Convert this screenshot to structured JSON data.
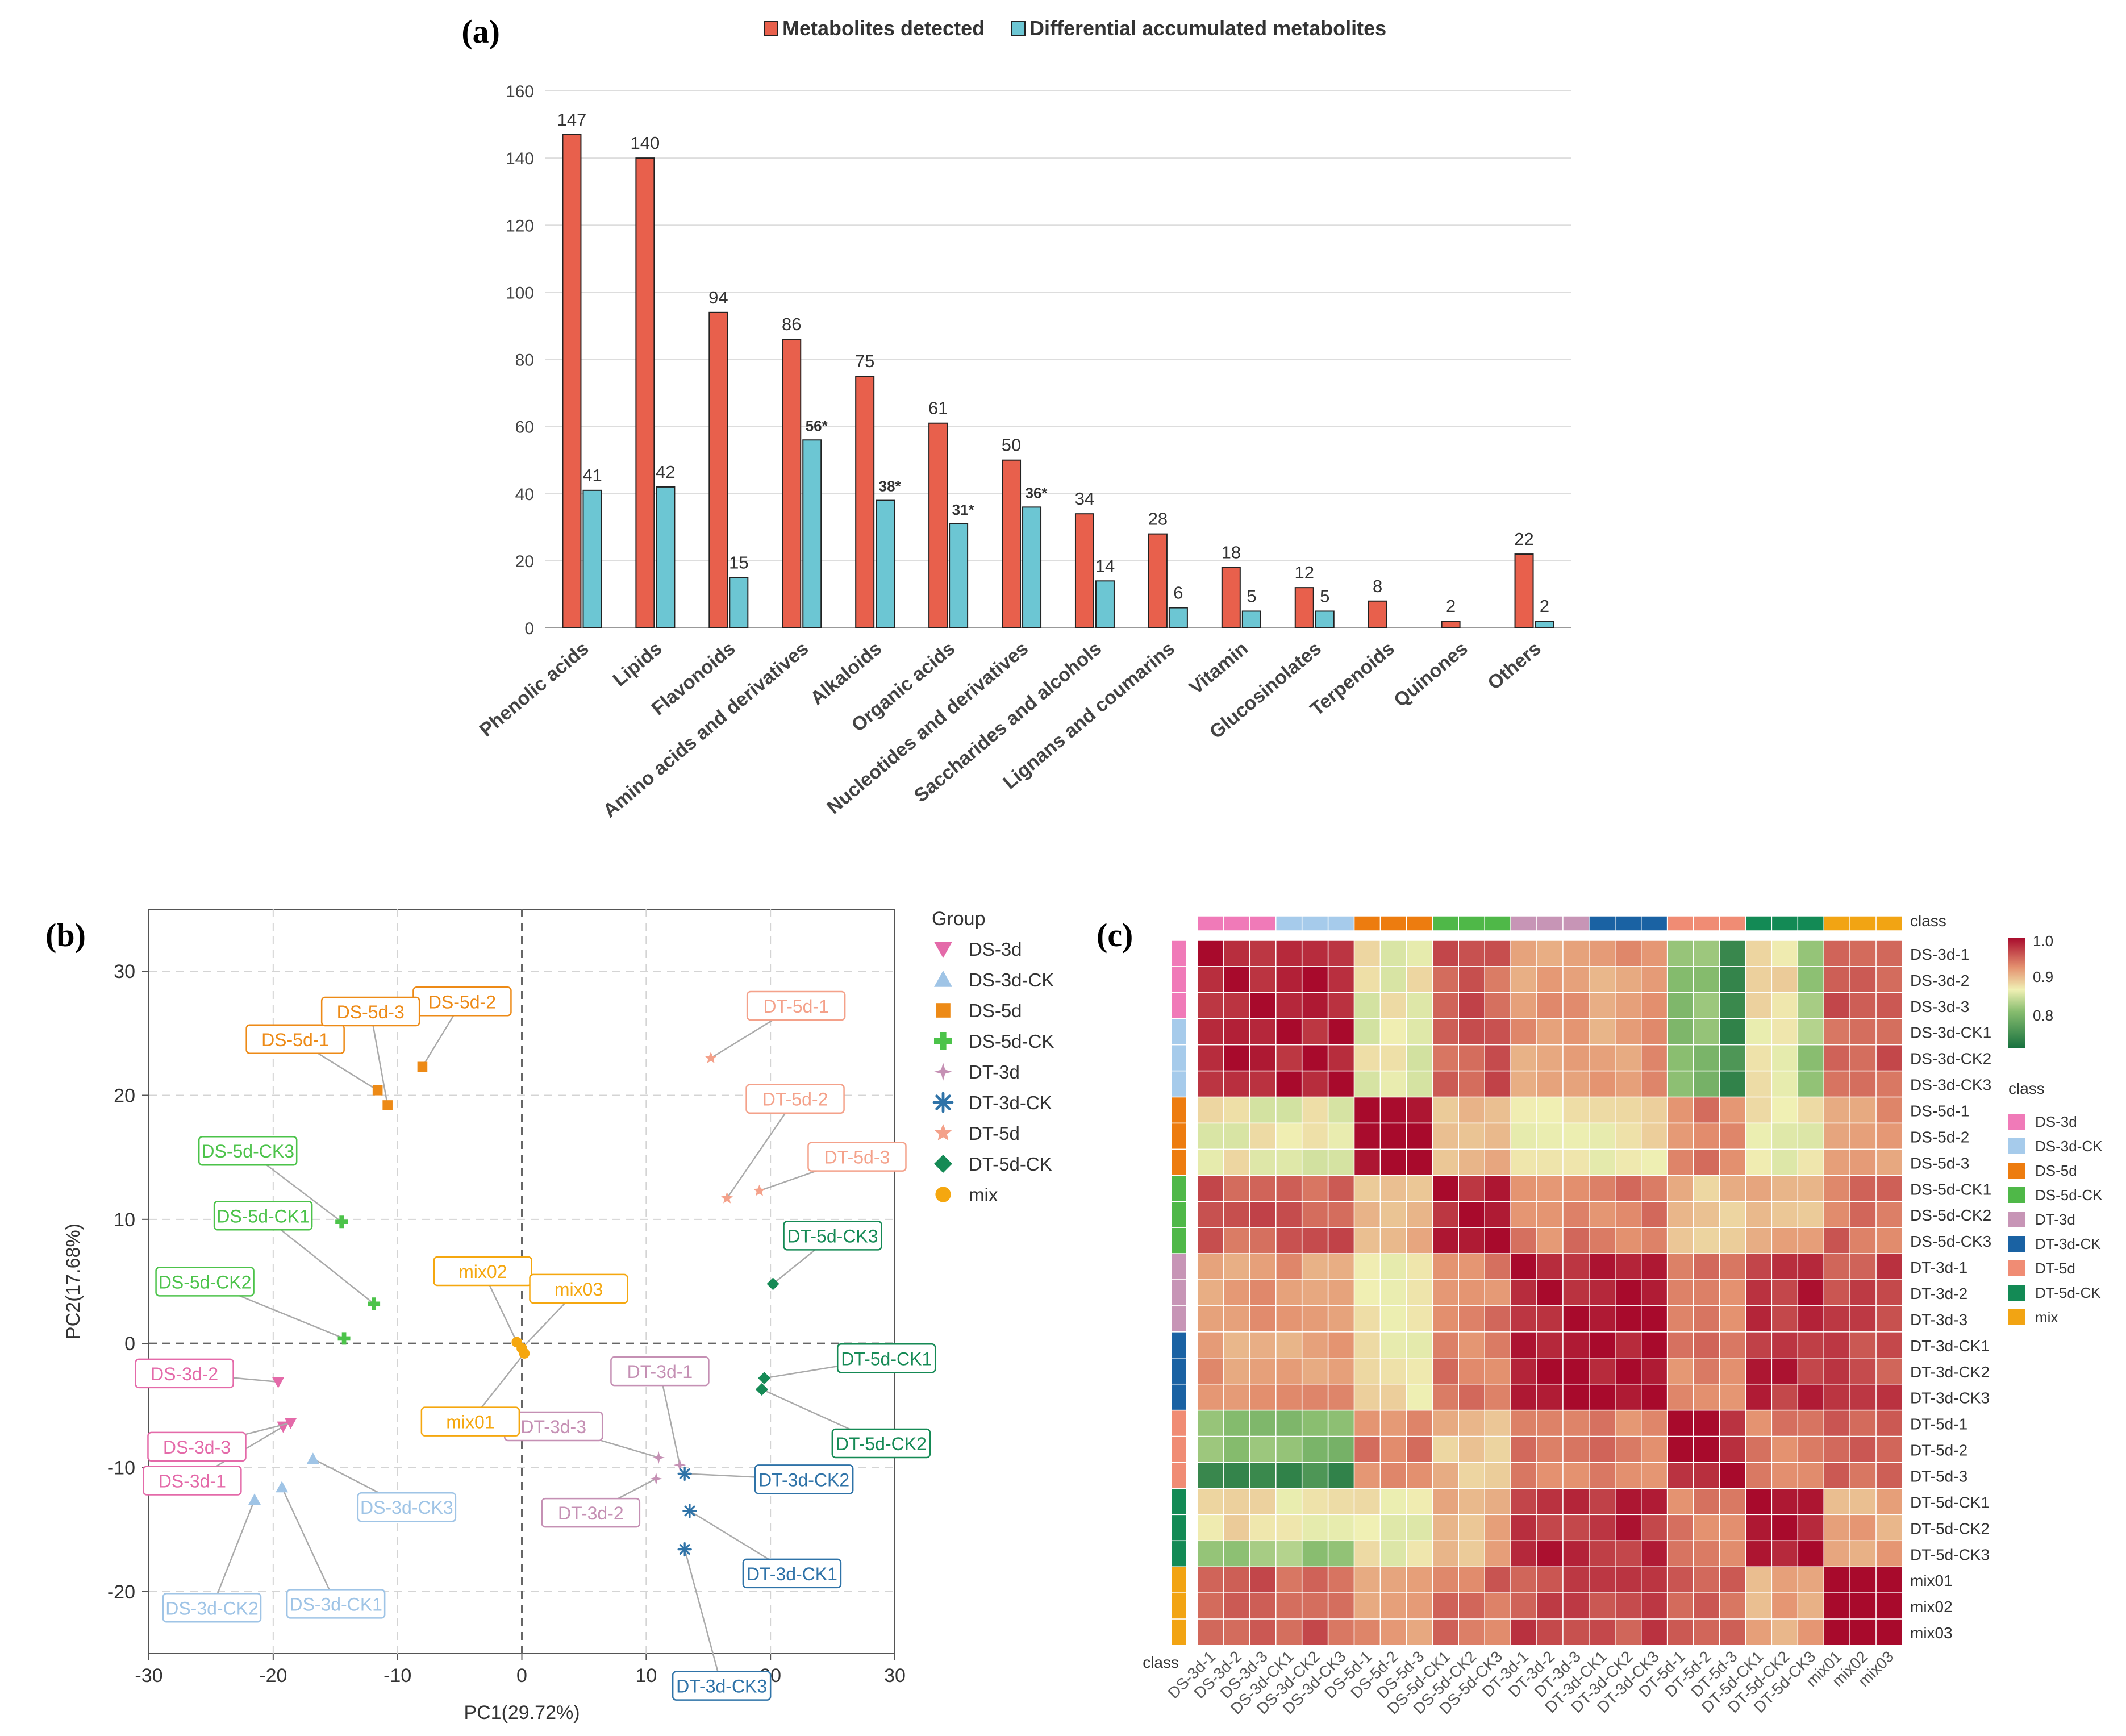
{
  "chart_data": [
    {
      "panel": "(a)",
      "type": "bar",
      "categories": [
        "Phenolic acids",
        "Lipids",
        "Flavonoids",
        "Amino acids and derivatives",
        "Alkaloids",
        "Organic acids",
        "Nucleotides and derivatives",
        "Saccharides and alcohols",
        "Lignans and coumarins",
        "Vitamin",
        "Glucosinolates",
        "Terpenoids",
        "Quinones",
        "Others"
      ],
      "series": [
        {
          "name": "Metabolites detected",
          "color": "#e8604c",
          "values": [
            147,
            140,
            94,
            86,
            75,
            61,
            50,
            34,
            28,
            18,
            12,
            8,
            2,
            22
          ],
          "labels": [
            "147",
            "140",
            "94",
            "86",
            "75",
            "61",
            "50",
            "34",
            "28",
            "18",
            "12",
            "8",
            "2",
            "22"
          ]
        },
        {
          "name": "Differential accumulated metabolites",
          "color": "#6cc6d3",
          "values": [
            41,
            42,
            15,
            56,
            38,
            31,
            36,
            14,
            6,
            5,
            5,
            0,
            0,
            2
          ],
          "labels": [
            "41",
            "42",
            "15",
            "56*",
            "38*",
            "31*",
            "36*",
            "14",
            "6",
            "5",
            "5",
            "",
            "",
            "2"
          ]
        }
      ],
      "ylim": [
        0,
        160
      ],
      "yticks": [
        0,
        20,
        40,
        60,
        80,
        100,
        120,
        140,
        160
      ],
      "xlabel": "",
      "ylabel": ""
    },
    {
      "panel": "(b)",
      "type": "scatter",
      "xlabel": "PC1(29.72%)",
      "ylabel": "PC2(17.68%)",
      "xlim": [
        -30,
        30
      ],
      "ylim": [
        -25,
        35
      ],
      "xticks": [
        -30,
        -20,
        -10,
        0,
        10,
        20,
        30
      ],
      "yticks": [
        -20,
        -10,
        0,
        10,
        20,
        30
      ],
      "legend_title": "Group",
      "groups": [
        {
          "name": "DS-3d",
          "color": "#e46aa9",
          "marker": "triangle-down",
          "points": [
            {
              "label": "DS-3d-1",
              "x": -19.2,
              "y": -6.7
            },
            {
              "label": "DS-3d-2",
              "x": -19.6,
              "y": -3.1
            },
            {
              "label": "DS-3d-3",
              "x": -18.6,
              "y": -6.4
            }
          ]
        },
        {
          "name": "DS-3d-CK",
          "color": "#9fc4e6",
          "marker": "triangle-up",
          "points": [
            {
              "label": "DS-3d-CK1",
              "x": -19.3,
              "y": -11.6
            },
            {
              "label": "DS-3d-CK2",
              "x": -21.5,
              "y": -12.6
            },
            {
              "label": "DS-3d-CK3",
              "x": -16.8,
              "y": -9.3
            }
          ]
        },
        {
          "name": "DS-5d",
          "color": "#ed8a16",
          "marker": "square",
          "points": [
            {
              "label": "DS-5d-1",
              "x": -11.6,
              "y": 20.4
            },
            {
              "label": "DS-5d-2",
              "x": -8.0,
              "y": 22.3
            },
            {
              "label": "DS-5d-3",
              "x": -10.8,
              "y": 19.2
            }
          ]
        },
        {
          "name": "DS-5d-CK",
          "color": "#4cc34a",
          "marker": "plus",
          "points": [
            {
              "label": "DS-5d-CK1",
              "x": -11.9,
              "y": 3.2
            },
            {
              "label": "DS-5d-CK2",
              "x": -14.3,
              "y": 0.4
            },
            {
              "label": "DS-5d-CK3",
              "x": -14.5,
              "y": 9.8
            }
          ]
        },
        {
          "name": "DT-3d",
          "color": "#c590b4",
          "marker": "star4",
          "points": [
            {
              "label": "DT-3d-1",
              "x": 12.7,
              "y": -9.8
            },
            {
              "label": "DT-3d-2",
              "x": 10.8,
              "y": -10.9
            },
            {
              "label": "DT-3d-3",
              "x": 11.0,
              "y": -9.2
            }
          ]
        },
        {
          "name": "DT-3d-CK",
          "color": "#2f73a8",
          "marker": "asterisk",
          "points": [
            {
              "label": "DT-3d-CK1",
              "x": 13.5,
              "y": -13.5
            },
            {
              "label": "DT-3d-CK2",
              "x": 13.1,
              "y": -10.5
            },
            {
              "label": "DT-3d-CK3",
              "x": 13.1,
              "y": -16.6
            }
          ]
        },
        {
          "name": "DT-5d",
          "color": "#f4a18a",
          "marker": "star",
          "points": [
            {
              "label": "DT-5d-1",
              "x": 15.2,
              "y": 23.0
            },
            {
              "label": "DT-5d-2",
              "x": 16.5,
              "y": 11.7
            },
            {
              "label": "DT-5d-3",
              "x": 19.1,
              "y": 12.3
            }
          ]
        },
        {
          "name": "DT-5d-CK",
          "color": "#158a55",
          "marker": "diamond",
          "points": [
            {
              "label": "DT-5d-CK1",
              "x": 19.5,
              "y": -2.8
            },
            {
              "label": "DT-5d-CK2",
              "x": 19.3,
              "y": -3.7
            },
            {
              "label": "DT-5d-CK3",
              "x": 20.2,
              "y": 4.8
            }
          ]
        },
        {
          "name": "mix",
          "color": "#f5a70f",
          "marker": "circle",
          "points": [
            {
              "label": "mix01",
              "x": 0.2,
              "y": -0.8
            },
            {
              "label": "mix02",
              "x": -0.4,
              "y": 0.1
            },
            {
              "label": "mix03",
              "x": 0.0,
              "y": -0.4
            }
          ]
        }
      ]
    },
    {
      "panel": "(c)",
      "type": "heatmap",
      "samples": [
        "DS-3d-1",
        "DS-3d-2",
        "DS-3d-3",
        "DS-3d-CK1",
        "DS-3d-CK2",
        "DS-3d-CK3",
        "DS-5d-1",
        "DS-5d-2",
        "DS-5d-3",
        "DS-5d-CK1",
        "DS-5d-CK2",
        "DS-5d-CK3",
        "DT-3d-1",
        "DT-3d-2",
        "DT-3d-3",
        "DT-3d-CK1",
        "DT-3d-CK2",
        "DT-3d-CK3",
        "DT-5d-1",
        "DT-5d-2",
        "DT-5d-3",
        "DT-5d-CK1",
        "DT-5d-CK2",
        "DT-5d-CK3",
        "mix01",
        "mix02",
        "mix03"
      ],
      "sample_class": [
        "DS-3d",
        "DS-3d",
        "DS-3d",
        "DS-3d-CK",
        "DS-3d-CK",
        "DS-3d-CK",
        "DS-5d",
        "DS-5d",
        "DS-5d",
        "DS-5d-CK",
        "DS-5d-CK",
        "DS-5d-CK",
        "DT-3d",
        "DT-3d",
        "DT-3d",
        "DT-3d-CK",
        "DT-3d-CK",
        "DT-3d-CK",
        "DT-5d",
        "DT-5d",
        "DT-5d",
        "DT-5d-CK",
        "DT-5d-CK",
        "DT-5d-CK",
        "mix",
        "mix",
        "mix"
      ],
      "class_title": "class",
      "classes": [
        {
          "name": "DS-3d",
          "color": "#f07ab8"
        },
        {
          "name": "DS-3d-CK",
          "color": "#a6cbeb"
        },
        {
          "name": "DS-5d",
          "color": "#ed7c0f"
        },
        {
          "name": "DS-5d-CK",
          "color": "#4fb848"
        },
        {
          "name": "DT-3d",
          "color": "#c795b6"
        },
        {
          "name": "DT-3d-CK",
          "color": "#1a62a3"
        },
        {
          "name": "DT-5d",
          "color": "#f08c74"
        },
        {
          "name": "DT-5d-CK",
          "color": "#138a55"
        },
        {
          "name": "mix",
          "color": "#f2a413"
        }
      ],
      "color_scale": {
        "ticks": [
          "1.0",
          "0.9",
          "0.8"
        ],
        "min": 0.7,
        "max": 1.0
      },
      "group_blocks": [
        {
          "name": "DS-3d",
          "samples": [
            0,
            1,
            2,
            3,
            4,
            5
          ]
        },
        {
          "name": "DS-5d",
          "samples": [
            6,
            7,
            8
          ]
        },
        {
          "name": "DS-5d-CK",
          "samples": [
            9,
            10,
            11
          ]
        },
        {
          "name": "DT-3d",
          "samples": [
            12,
            13,
            14,
            15,
            16,
            17
          ]
        },
        {
          "name": "DT-5d",
          "samples": [
            18,
            19,
            20
          ]
        },
        {
          "name": "DT-5d-CK",
          "samples": [
            21,
            22,
            23
          ]
        },
        {
          "name": "mix",
          "samples": [
            24,
            25,
            26
          ]
        }
      ],
      "group_correlation": [
        [
          0.99,
          0.86,
          0.95,
          0.91,
          0.8,
          0.87,
          0.95
        ],
        [
          0.86,
          0.99,
          0.89,
          0.87,
          0.93,
          0.86,
          0.92
        ],
        [
          0.95,
          0.89,
          0.99,
          0.93,
          0.89,
          0.9,
          0.94
        ],
        [
          0.91,
          0.87,
          0.93,
          0.99,
          0.93,
          0.98,
          0.96
        ],
        [
          0.8,
          0.93,
          0.89,
          0.93,
          0.99,
          0.93,
          0.95
        ],
        [
          0.87,
          0.86,
          0.9,
          0.98,
          0.93,
          0.99,
          0.9
        ],
        [
          0.95,
          0.92,
          0.94,
          0.96,
          0.95,
          0.9,
          1.0
        ]
      ]
    }
  ]
}
